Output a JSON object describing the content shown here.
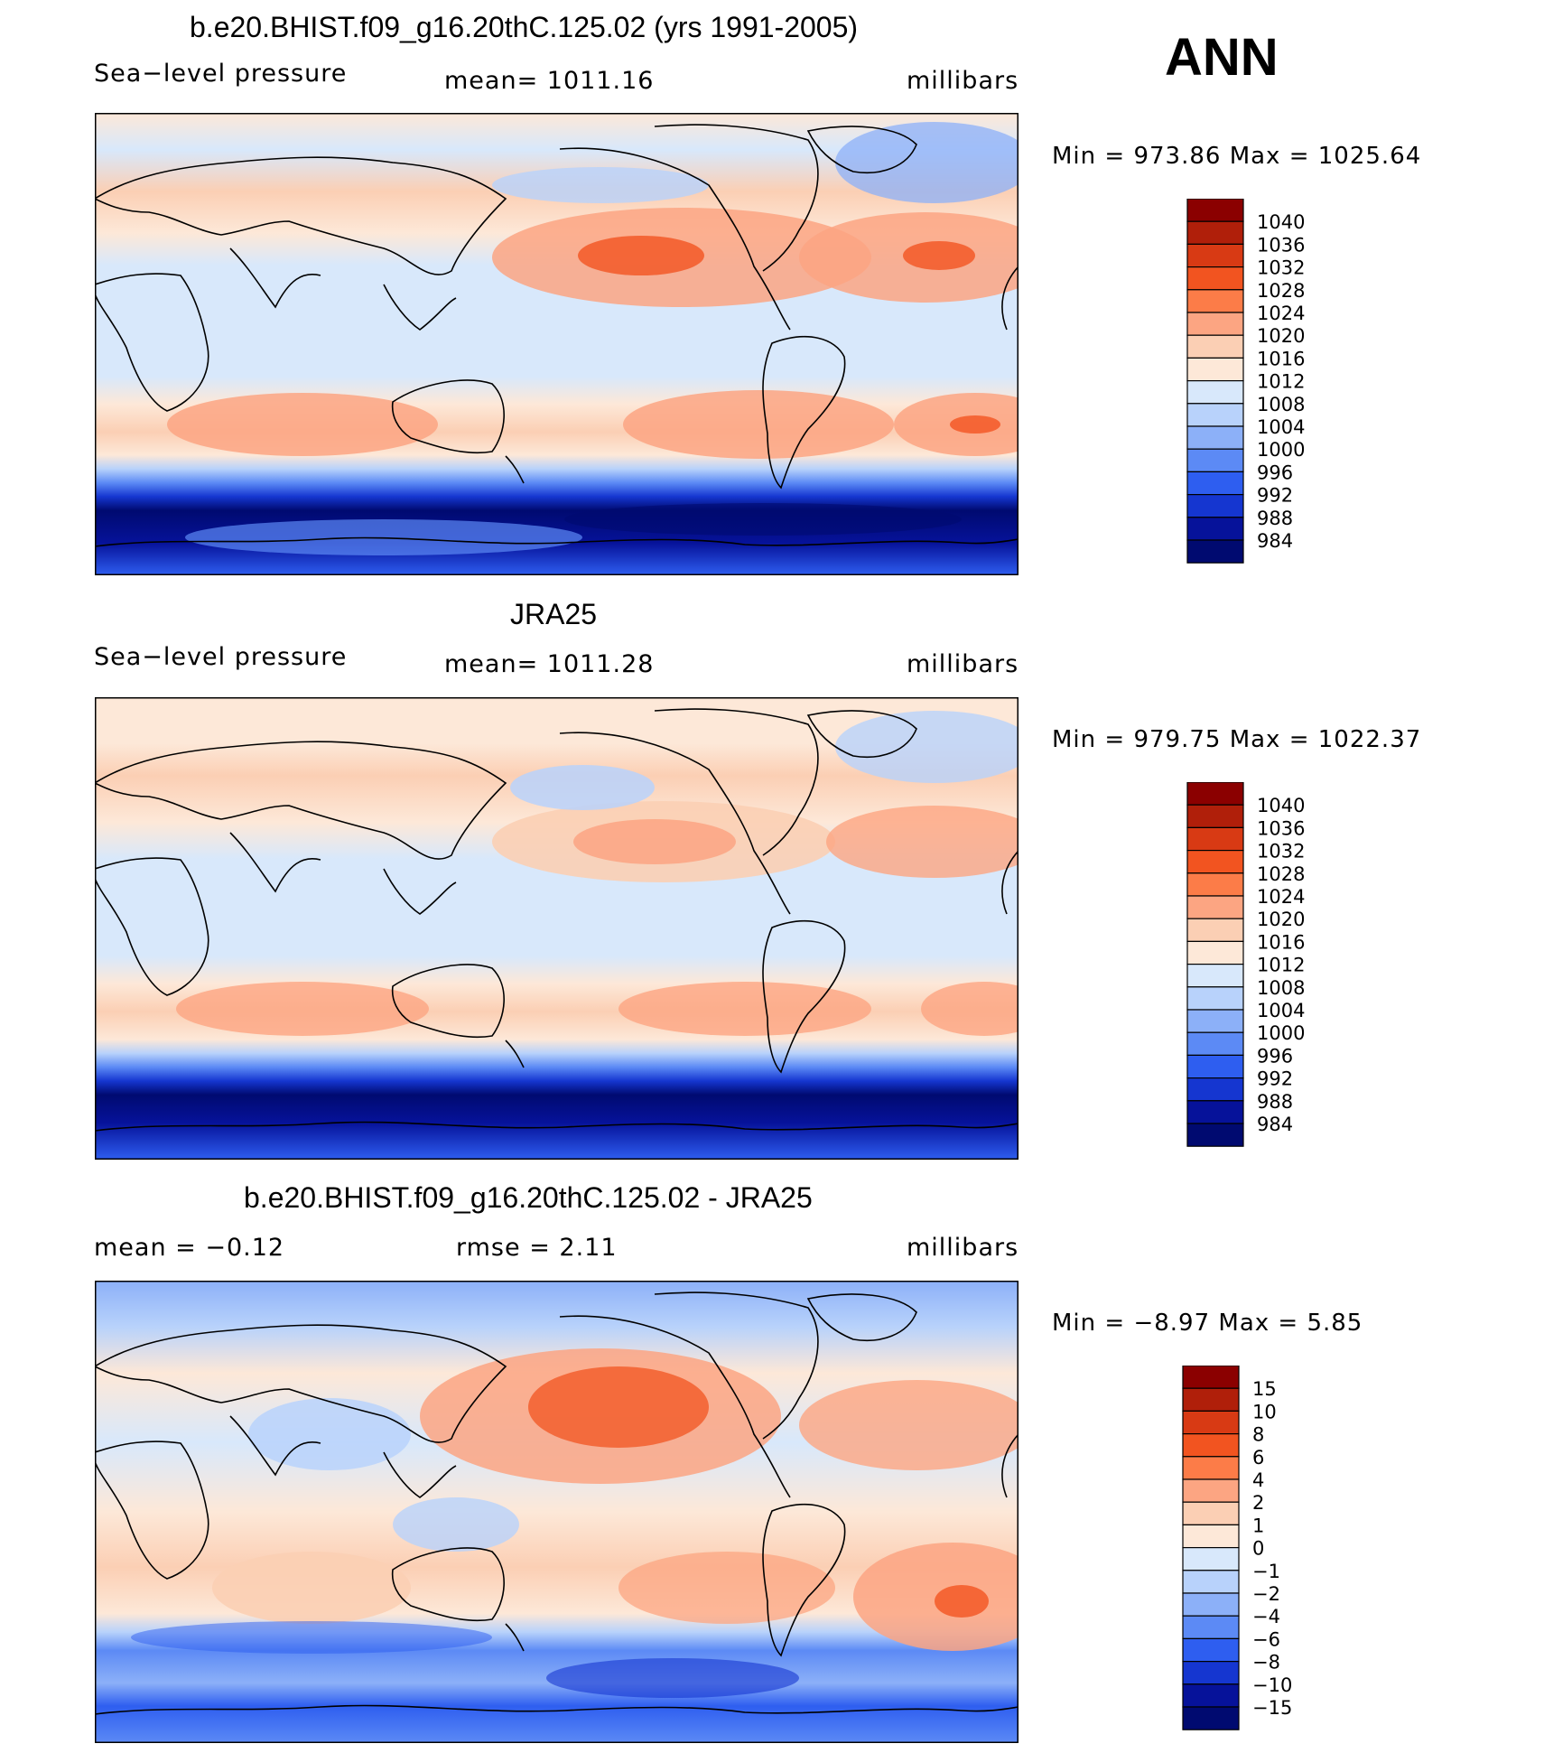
{
  "chart_data": [
    {
      "type": "heatmap",
      "title": "b.e20.BHIST.f09_g16.20thC.125.02 (yrs 1991-2005)",
      "variable": "Sea−level pressure",
      "mean_label": "mean=  1011.16",
      "units": "millibars",
      "minmax_label": "Min  =  973.86  Max  =  1025.64",
      "min": 973.86,
      "max": 1025.64,
      "colorbar": {
        "labels": [
          "1040",
          "1036",
          "1032",
          "1028",
          "1024",
          "1020",
          "1016",
          "1012",
          "1008",
          "1004",
          "1000",
          "996",
          "992",
          "988",
          "984"
        ],
        "colors": [
          "#8b0000",
          "#b01f0a",
          "#d83a14",
          "#f25420",
          "#fc7c48",
          "#fca582",
          "#fbcfb4",
          "#fde8d8",
          "#d8e8fb",
          "#b8d2fb",
          "#8cb0f8",
          "#5c8af5",
          "#2e5ef0",
          "#1536d0",
          "#06129a",
          "#000a70"
        ]
      }
    },
    {
      "type": "heatmap",
      "title": "JRA25",
      "variable": "Sea−level pressure",
      "mean_label": "mean=  1011.28",
      "units": "millibars",
      "minmax_label": "Min  =  979.75  Max  =  1022.37",
      "min": 979.75,
      "max": 1022.37,
      "colorbar": {
        "labels": [
          "1040",
          "1036",
          "1032",
          "1028",
          "1024",
          "1020",
          "1016",
          "1012",
          "1008",
          "1004",
          "1000",
          "996",
          "992",
          "988",
          "984"
        ],
        "colors": [
          "#8b0000",
          "#b01f0a",
          "#d83a14",
          "#f25420",
          "#fc7c48",
          "#fca582",
          "#fbcfb4",
          "#fde8d8",
          "#d8e8fb",
          "#b8d2fb",
          "#8cb0f8",
          "#5c8af5",
          "#2e5ef0",
          "#1536d0",
          "#06129a",
          "#000a70"
        ]
      }
    },
    {
      "type": "heatmap",
      "title": "b.e20.BHIST.f09_g16.20thC.125.02 - JRA25",
      "mean_label": "mean  =    −0.12",
      "rmse_label": "rmse  =      2.11",
      "units": "millibars",
      "minmax_label": "Min  =    −8.97  Max  =      5.85",
      "min": -8.97,
      "max": 5.85,
      "mean": -0.12,
      "rmse": 2.11,
      "colorbar": {
        "labels": [
          "15",
          "10",
          "8",
          "6",
          "4",
          "2",
          "1",
          "0",
          "−1",
          "−2",
          "−4",
          "−6",
          "−8",
          "−10",
          "−15"
        ],
        "colors": [
          "#8b0000",
          "#b01f0a",
          "#d83a14",
          "#f25420",
          "#fc7c48",
          "#fca582",
          "#fbcfb4",
          "#fde8d8",
          "#d8e8fb",
          "#b8d2fb",
          "#8cb0f8",
          "#5c8af5",
          "#2e5ef0",
          "#1536d0",
          "#06129a",
          "#000a70"
        ]
      }
    }
  ],
  "season": "ANN"
}
